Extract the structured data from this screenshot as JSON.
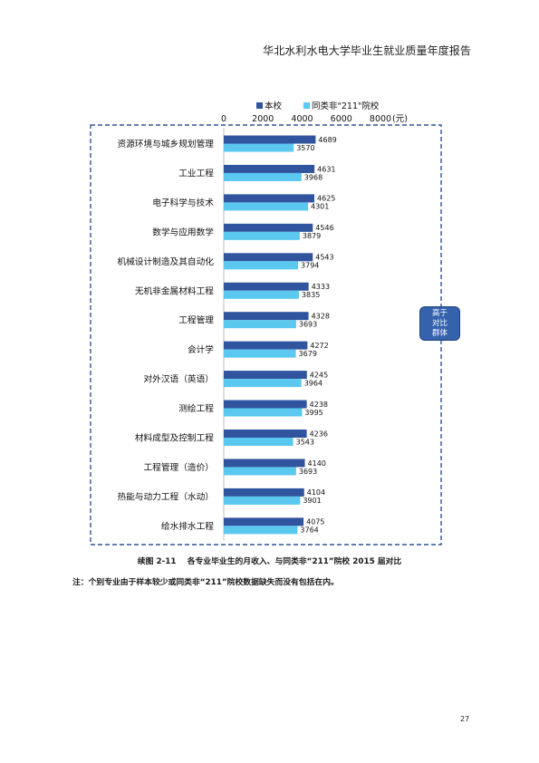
{
  "header": {
    "title": "华北水利水电大学毕业生就业质量年度报告"
  },
  "chart_data": {
    "type": "bar",
    "orientation": "horizontal",
    "categories": [
      "资源环境与城乡规划管理",
      "工业工程",
      "电子科学与技术",
      "数学与应用数学",
      "机械设计制造及其自动化",
      "无机非金属材料工程",
      "工程管理",
      "会计学",
      "对外汉语（英语）",
      "测绘工程",
      "材料成型及控制工程",
      "工程管理（造价）",
      "热能与动力工程（水动）",
      "给水排水工程"
    ],
    "series": [
      {
        "name": "本校",
        "color": "#30559e",
        "values": [
          4689,
          4631,
          4625,
          4546,
          4543,
          4333,
          4328,
          4272,
          4245,
          4238,
          4236,
          4140,
          4104,
          4075
        ]
      },
      {
        "name": "同类非\"211\"院校",
        "color": "#5ac8ef",
        "values": [
          3570,
          3968,
          4301,
          3879,
          3794,
          3835,
          3693,
          3679,
          3964,
          3995,
          3543,
          3693,
          3901,
          3764
        ]
      }
    ],
    "xlim": [
      0,
      8000
    ],
    "x_ticks": [
      0,
      2000,
      4000,
      6000,
      8000
    ],
    "x_unit": "(元)",
    "x_axis_position": "top",
    "grid": false,
    "legend_position": "top",
    "data_labels": true,
    "border_color": "#2f5597"
  },
  "callout": {
    "lines": [
      "高于",
      "对比",
      "群体"
    ],
    "color": "#3462ad"
  },
  "caption": "续图 2-11    各专业毕业生的月收入、与同类非“211”院校 2015 届对比",
  "note": "注：个别专业由于样本较少或同类非“211”院校数据缺失而没有包括在内。",
  "page_number": "27"
}
